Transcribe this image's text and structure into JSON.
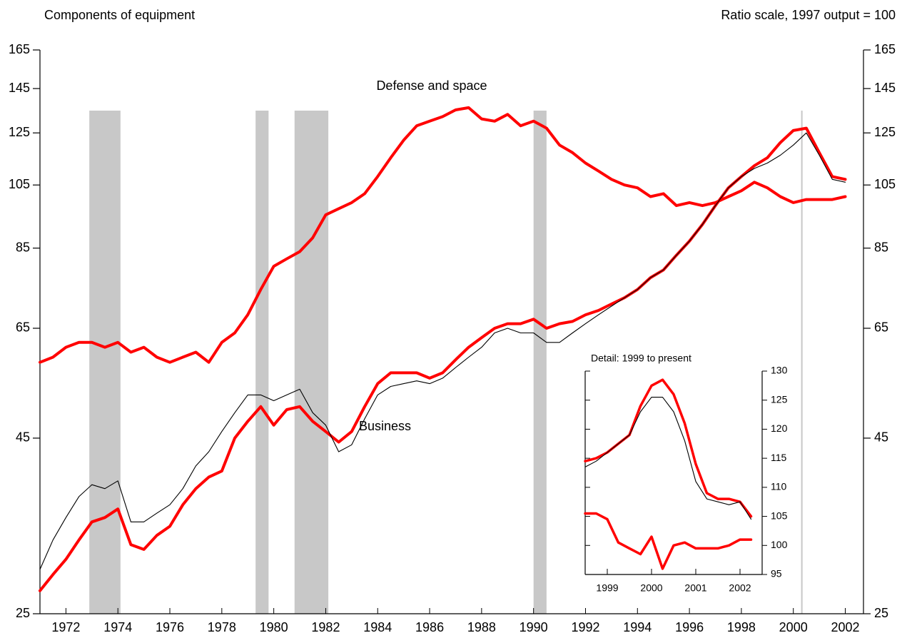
{
  "chart_data": [
    {
      "type": "line",
      "title": "Components of equipment",
      "subtitle": "Ratio scale, 1997 output = 100",
      "log_scale": true,
      "ylim": [
        25,
        165
      ],
      "yticks": [
        25,
        45,
        65,
        85,
        105,
        125,
        145,
        165
      ],
      "xlim": [
        1971.5,
        2003.2
      ],
      "xticks": [
        {
          "value": 1972.5,
          "label": "1972"
        },
        {
          "value": 1974.5,
          "label": "1974"
        },
        {
          "value": 1976.5,
          "label": "1976"
        },
        {
          "value": 1978.5,
          "label": "1978"
        },
        {
          "value": 1980.5,
          "label": "1980"
        },
        {
          "value": 1982.5,
          "label": "1982"
        },
        {
          "value": 1984.5,
          "label": "1984"
        },
        {
          "value": 1986.5,
          "label": "1986"
        },
        {
          "value": 1988.5,
          "label": "1988"
        },
        {
          "value": 1990.5,
          "label": "1990"
        },
        {
          "value": 1992.5,
          "label": "1992"
        },
        {
          "value": 1994.5,
          "label": "1994"
        },
        {
          "value": 1996.5,
          "label": "1996"
        },
        {
          "value": 1998.5,
          "label": "1998"
        },
        {
          "value": 2000.5,
          "label": "2000"
        },
        {
          "value": 2002.5,
          "label": "2002"
        }
      ],
      "recessions": [
        [
          1973.4,
          1974.6
        ],
        [
          1979.8,
          1980.3
        ],
        [
          1981.3,
          1982.6
        ],
        [
          1990.5,
          1991.0
        ],
        [
          2000.8,
          2000.85
        ]
      ],
      "x": [
        1971.5,
        1972,
        1972.5,
        1973,
        1973.5,
        1974,
        1974.5,
        1975,
        1975.5,
        1976,
        1976.5,
        1977,
        1977.5,
        1978,
        1978.5,
        1979,
        1979.5,
        1980,
        1980.5,
        1981,
        1981.5,
        1982,
        1982.5,
        1983,
        1983.5,
        1984,
        1984.5,
        1985,
        1985.5,
        1986,
        1986.5,
        1987,
        1987.5,
        1988,
        1988.5,
        1989,
        1989.5,
        1990,
        1990.5,
        1991,
        1991.5,
        1992,
        1992.5,
        1993,
        1993.5,
        1994,
        1994.5,
        1995,
        1995.5,
        1996,
        1996.5,
        1997,
        1997.5,
        1998,
        1998.5,
        1999,
        1999.5,
        2000,
        2000.5,
        2001,
        2001.5,
        2002,
        2002.5
      ],
      "series": [
        {
          "name": "Defense and space",
          "color": "#ff0000",
          "values": [
            58,
            59,
            61,
            62,
            62,
            61,
            62,
            60,
            61,
            59,
            58,
            59,
            60,
            58,
            62,
            64,
            68,
            74,
            80,
            82,
            84,
            88,
            95,
            97,
            99,
            102,
            108,
            115,
            122,
            128,
            130,
            132,
            135,
            136,
            131,
            130,
            133,
            128,
            130,
            127,
            120,
            117,
            113,
            110,
            107,
            105,
            104,
            101,
            102,
            98,
            99,
            98,
            99,
            101,
            103,
            106,
            104,
            101,
            99,
            100,
            100,
            100,
            101
          ]
        },
        {
          "name": "Business",
          "color": "#ff0000",
          "values": [
            27,
            28.5,
            30,
            32,
            34,
            34.5,
            35.5,
            31.5,
            31,
            32.5,
            33.5,
            36,
            38,
            39.5,
            40.3,
            45,
            47.6,
            50,
            47,
            49.5,
            50,
            47.6,
            46,
            44.4,
            46,
            50,
            54,
            56,
            56,
            56,
            55,
            56,
            58.5,
            61,
            63,
            65,
            66,
            66,
            67,
            65,
            66,
            66.5,
            68,
            69,
            70.5,
            72,
            74,
            77,
            79,
            83,
            87,
            92,
            98,
            104,
            108,
            112,
            115,
            121,
            126,
            127,
            117,
            108,
            107
          ]
        },
        {
          "color": "#000000",
          "values": [
            29,
            32,
            34.5,
            37,
            38.5,
            38,
            39,
            34,
            34,
            35,
            36,
            38,
            41,
            43,
            46,
            49,
            52,
            52,
            51,
            52,
            53,
            49,
            47,
            43,
            44,
            48,
            52,
            53.5,
            54,
            54.5,
            54,
            55,
            57,
            59,
            61,
            64,
            65,
            64,
            64,
            62,
            62,
            64,
            66,
            68,
            70,
            72,
            74,
            77,
            79,
            83,
            87,
            92,
            98,
            104,
            108,
            111,
            113,
            116,
            120,
            125,
            116,
            107,
            106
          ]
        }
      ]
    },
    {
      "type": "line",
      "title": "Detail: 1999 to present",
      "ylim": [
        95,
        130
      ],
      "yticks": [
        95,
        100,
        105,
        110,
        115,
        120,
        125,
        130
      ],
      "xlim": [
        1999.0,
        2003.0
      ],
      "xticks": [
        {
          "value": 1999.5,
          "label": "1999"
        },
        {
          "value": 2000.5,
          "label": "2000"
        },
        {
          "value": 2001.5,
          "label": "2001"
        },
        {
          "value": 2002.5,
          "label": "2002"
        }
      ],
      "x": [
        1999,
        1999.25,
        1999.5,
        1999.75,
        2000,
        2000.25,
        2000.5,
        2000.75,
        2001,
        2001.25,
        2001.5,
        2001.75,
        2002,
        2002.25,
        2002.5,
        2002.75
      ],
      "series": [
        {
          "color": "#ff0000",
          "values": [
            114.5,
            115,
            116,
            117.5,
            119,
            124,
            127.5,
            128.5,
            126,
            121,
            114,
            109,
            108,
            108,
            107.5,
            105
          ]
        },
        {
          "color": "#000000",
          "values": [
            113.5,
            114.5,
            116,
            117.5,
            119,
            123,
            125.5,
            125.5,
            123,
            118,
            111,
            108,
            107.5,
            107,
            107.5,
            104.5
          ]
        },
        {
          "color": "#ff0000",
          "values": [
            105.5,
            105.5,
            104.5,
            100.5,
            99.5,
            98.5,
            101.5,
            96,
            100,
            100.5,
            99.5,
            99.5,
            99.5,
            100,
            101,
            101
          ]
        }
      ]
    }
  ]
}
